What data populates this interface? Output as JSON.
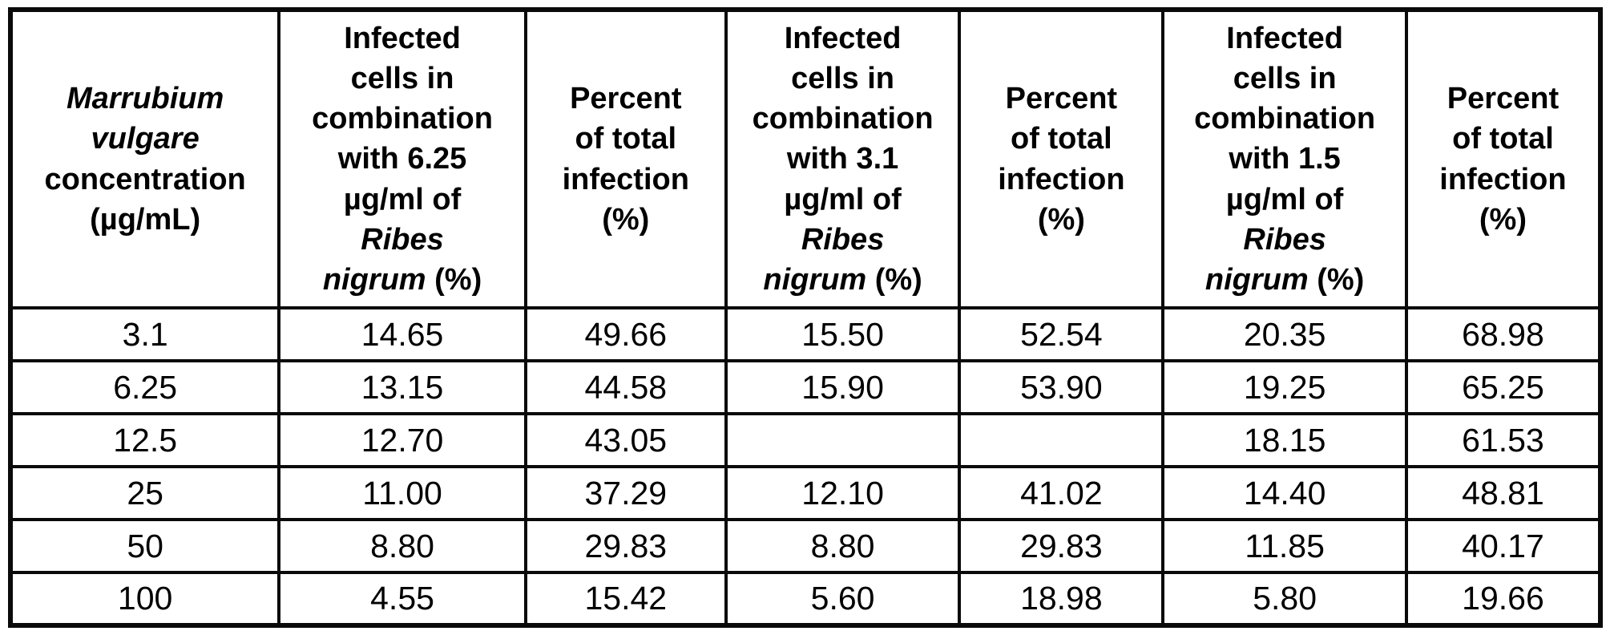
{
  "table": {
    "border_color": "#0a0a0a",
    "background_color": "#ffffff",
    "text_color": "#000000",
    "headers": [
      {
        "name": "marrubium-vulgare-concentration",
        "full_text": "Marrubium vulgare concentration (µg/mL)",
        "segments": [
          {
            "text": "Marrubium\nvulgare",
            "italic": true
          },
          {
            "text": "\nconcentration\n(µg/mL)",
            "italic": false
          }
        ]
      },
      {
        "name": "infected-cells-6-25",
        "full_text": "Infected cells in combination with 6.25 µg/ml of Ribes nigrum (%)",
        "segments": [
          {
            "text": "Infected\ncells in\ncombination\nwith 6.25\nµg/ml of\n",
            "italic": false
          },
          {
            "text": "Ribes\nnigrum",
            "italic": true
          },
          {
            "text": " (%)",
            "italic": false
          }
        ]
      },
      {
        "name": "percent-total-infection-1",
        "full_text": "Percent of total infection (%)",
        "segments": [
          {
            "text": "Percent\nof total\ninfection\n(%)",
            "italic": false
          }
        ]
      },
      {
        "name": "infected-cells-3-1",
        "full_text": "Infected cells in combination with 3.1 µg/ml of Ribes nigrum (%)",
        "segments": [
          {
            "text": "Infected\ncells in\ncombination\nwith 3.1\nµg/ml of\n",
            "italic": false
          },
          {
            "text": "Ribes\nnigrum",
            "italic": true
          },
          {
            "text": " (%)",
            "italic": false
          }
        ]
      },
      {
        "name": "percent-total-infection-2",
        "full_text": "Percent of total infection (%)",
        "segments": [
          {
            "text": "Percent\nof total\ninfection\n(%)",
            "italic": false
          }
        ]
      },
      {
        "name": "infected-cells-1-5",
        "full_text": "Infected cells in combination with 1.5 µg/ml of Ribes nigrum (%)",
        "segments": [
          {
            "text": "Infected\ncells in\ncombination\nwith 1.5\nµg/ml of\n",
            "italic": false
          },
          {
            "text": "Ribes\nnigrum",
            "italic": true
          },
          {
            "text": " (%)",
            "italic": false
          }
        ]
      },
      {
        "name": "percent-total-infection-3",
        "full_text": "Percent of total infection (%)",
        "segments": [
          {
            "text": "Percent\nof total\ninfection\n(%)",
            "italic": false
          }
        ]
      }
    ],
    "rows": [
      [
        "3.1",
        "14.65",
        "49.66",
        "15.50",
        "52.54",
        "20.35",
        "68.98"
      ],
      [
        "6.25",
        "13.15",
        "44.58",
        "15.90",
        "53.90",
        "19.25",
        "65.25"
      ],
      [
        "12.5",
        "12.70",
        "43.05",
        "",
        "",
        "18.15",
        "61.53"
      ],
      [
        "25",
        "11.00",
        "37.29",
        "12.10",
        "41.02",
        "14.40",
        "48.81"
      ],
      [
        "50",
        "8.80",
        "29.83",
        "8.80",
        "29.83",
        "11.85",
        "40.17"
      ],
      [
        "100",
        "4.55",
        "15.42",
        "5.60",
        "18.98",
        "5.80",
        "19.66"
      ]
    ]
  }
}
